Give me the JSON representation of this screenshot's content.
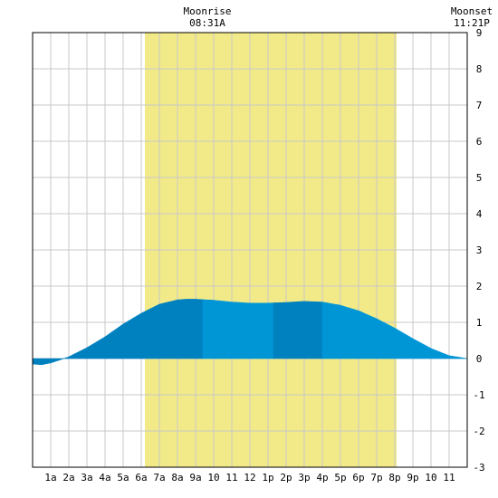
{
  "chart_data": {
    "type": "area",
    "moonrise": {
      "label": "Moonrise",
      "time": "08:31A",
      "hour": 8.52
    },
    "moonset": {
      "label": "Moonset",
      "time": "11:21P",
      "hour": 23.35
    },
    "daylight": {
      "start_hour": 6.2,
      "end_hour": 20.1,
      "color": "#f2ea88"
    },
    "xlim": [
      0,
      24
    ],
    "ylim": [
      -3,
      9
    ],
    "grid": true,
    "x_tick_labels": [
      "1a",
      "2a",
      "3a",
      "4a",
      "5a",
      "6a",
      "7a",
      "8a",
      "9a",
      "10",
      "11",
      "12",
      "1p",
      "2p",
      "3p",
      "4p",
      "5p",
      "6p",
      "7p",
      "8p",
      "9p",
      "10",
      "11"
    ],
    "y_tick_labels": [
      "-3",
      "-2",
      "-1",
      "0",
      "1",
      "2",
      "3",
      "4",
      "5",
      "6",
      "7",
      "8",
      "9"
    ],
    "tide": {
      "x": [
        0,
        0.5,
        1,
        1.5,
        2,
        3,
        4,
        5,
        6,
        7,
        8,
        8.5,
        9,
        10,
        11,
        12,
        13,
        14,
        15,
        16,
        17,
        18,
        19,
        20,
        21,
        22,
        23,
        24
      ],
      "y": [
        -0.15,
        -0.17,
        -0.12,
        -0.04,
        0.05,
        0.3,
        0.6,
        0.95,
        1.25,
        1.5,
        1.62,
        1.64,
        1.64,
        1.61,
        1.56,
        1.53,
        1.53,
        1.55,
        1.58,
        1.56,
        1.47,
        1.32,
        1.1,
        0.84,
        0.55,
        0.28,
        0.08,
        0.0
      ],
      "bands": [
        {
          "from": 0,
          "to": 9.4,
          "color": "#0081bf"
        },
        {
          "from": 9.4,
          "to": 13.3,
          "color": "#0096d6"
        },
        {
          "from": 13.3,
          "to": 16.0,
          "color": "#0081bf"
        },
        {
          "from": 16.0,
          "to": 24,
          "color": "#0096d6"
        }
      ]
    },
    "colors": {
      "grid": "#c8c8c8",
      "background": "#ffffff",
      "frame": "#000000"
    }
  }
}
